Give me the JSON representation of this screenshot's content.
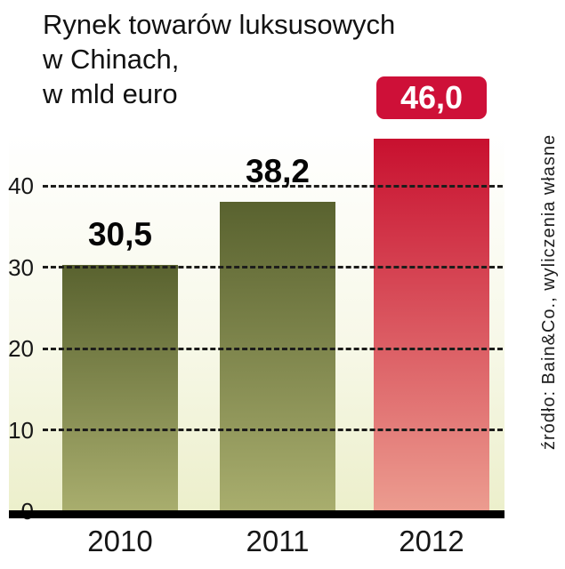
{
  "title": {
    "lines": [
      "Rynek towarów luksusowych",
      "w Chinach,",
      "w mld euro"
    ]
  },
  "source": {
    "text": "źródło: Bain&Co., wyliczenia własne"
  },
  "colors": {
    "accent_red": "#ce1038",
    "axis_black": "#000000",
    "plot_tint_bottom": "#ecefcb"
  },
  "chart_data": {
    "type": "bar",
    "title": "Rynek towarów luksusowych w Chinach, w mld euro",
    "categories": [
      "2010",
      "2011",
      "2012"
    ],
    "values": [
      30.5,
      38.2,
      46.0
    ],
    "value_labels": [
      "30,5",
      "38,2",
      "46,0"
    ],
    "unit": "mld euro",
    "xlabel": "",
    "ylabel": "",
    "ylim": [
      0,
      46
    ],
    "yticks": [
      0,
      10,
      20,
      30,
      40
    ],
    "ytick_labels": [
      "0",
      "10",
      "20",
      "30",
      "40"
    ],
    "grid": "horizontal-dashed",
    "legend": "none",
    "highlight_category": "2012",
    "bar_colors": [
      {
        "top": "#59622f",
        "bottom": "#a9ae6e"
      },
      {
        "top": "#59622f",
        "bottom": "#a9ae6e"
      },
      {
        "top": "#c8102f",
        "bottom": "#ec9d90"
      }
    ],
    "source": "źródło: Bain&Co., wyliczenia własne"
  }
}
